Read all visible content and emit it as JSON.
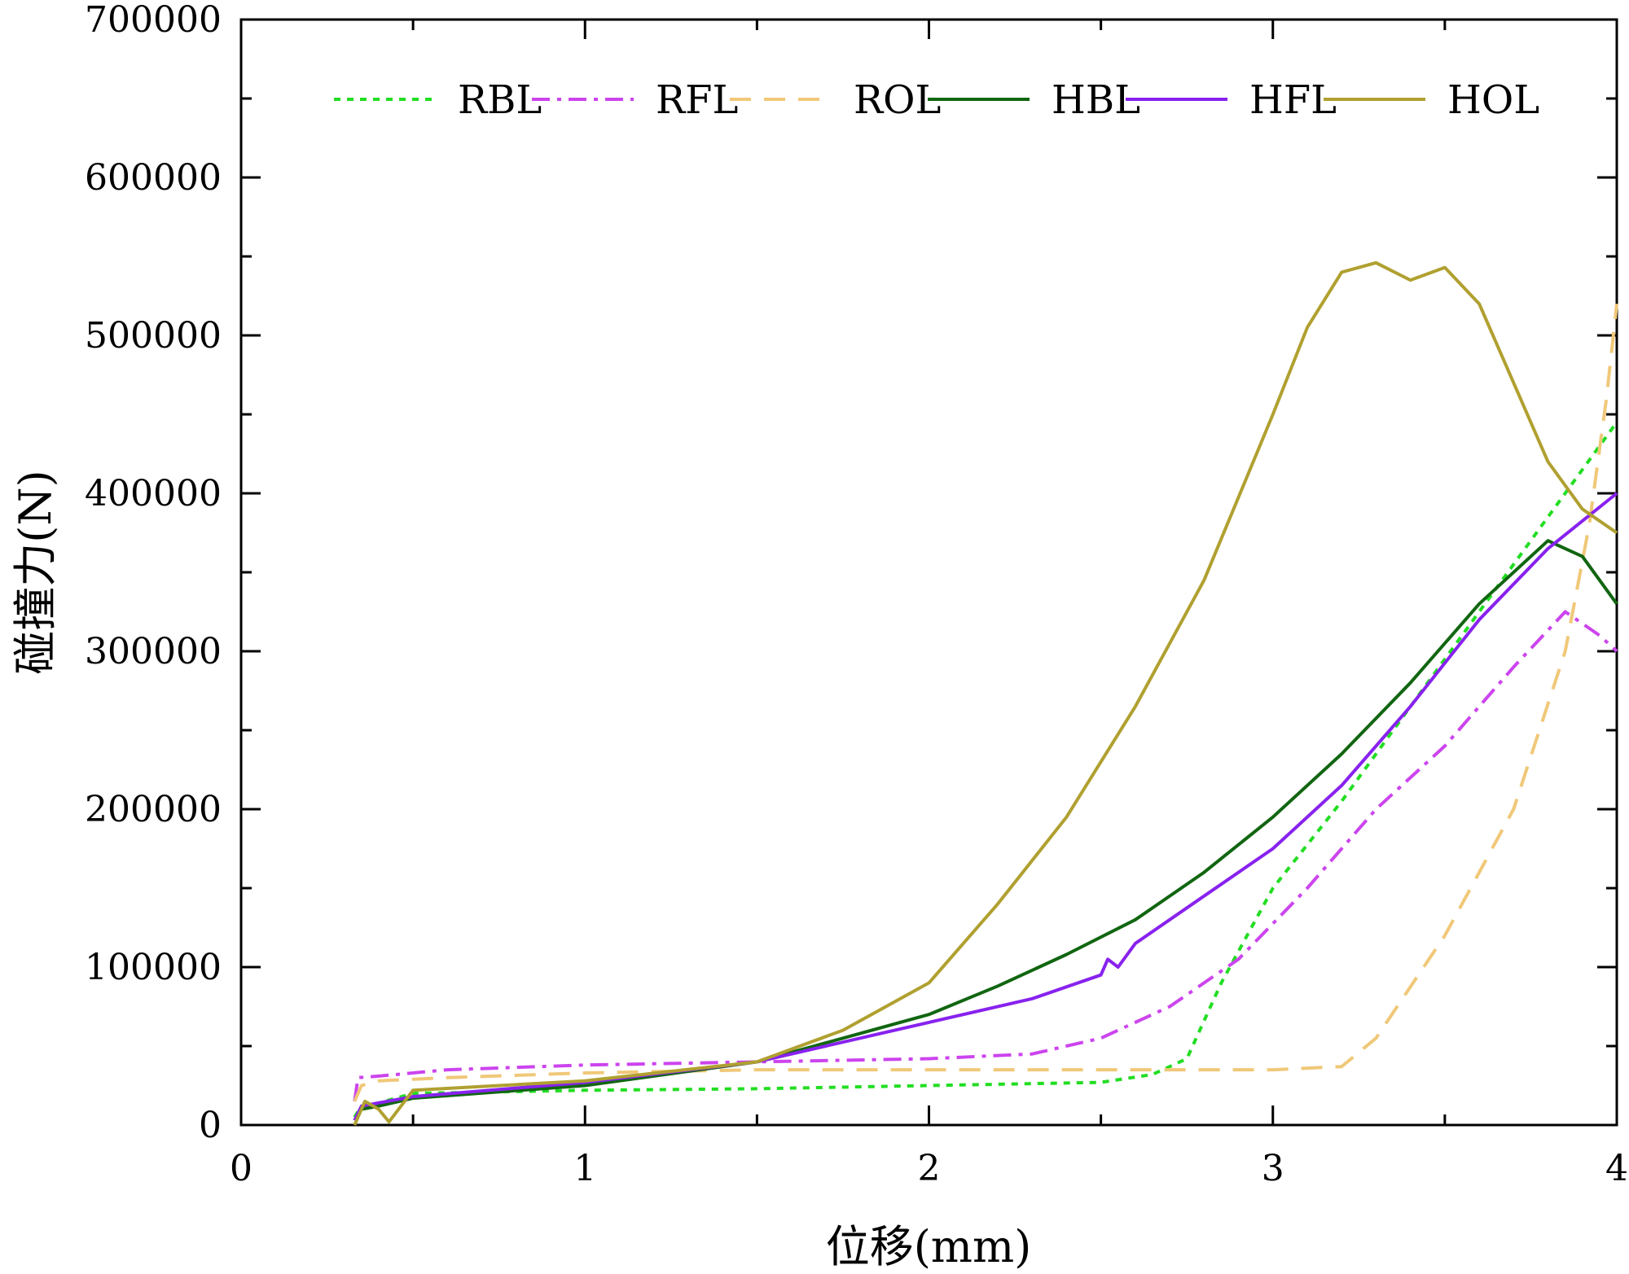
{
  "chart_data": {
    "type": "line",
    "title": "",
    "xlabel": "位移(mm)",
    "ylabel": "碰撞力(N)",
    "xlim": [
      0,
      4
    ],
    "ylim": [
      0,
      700000
    ],
    "xticks": [
      0,
      1,
      2,
      3,
      4
    ],
    "xtick_labels": [
      "0",
      "1",
      "2",
      "3",
      "4"
    ],
    "yticks": [
      0,
      100000,
      200000,
      300000,
      400000,
      500000,
      600000,
      700000
    ],
    "ytick_labels": [
      "0",
      "100000",
      "200000",
      "300000",
      "400000",
      "500000",
      "600000",
      "700000"
    ],
    "grid": false,
    "legend_position": "top",
    "series": [
      {
        "name": "RBL",
        "color": "#22dd22",
        "dash": "dotted",
        "x": [
          0.33,
          0.35,
          0.4,
          0.5,
          1.0,
          1.5,
          2.0,
          2.5,
          2.65,
          2.75,
          2.85,
          3.0,
          3.2,
          3.4,
          3.6,
          3.8,
          4.0
        ],
        "y": [
          5000,
          12000,
          14000,
          20000,
          22000,
          23000,
          25000,
          27000,
          32000,
          42000,
          90000,
          150000,
          205000,
          265000,
          325000,
          385000,
          445000
        ]
      },
      {
        "name": "RFL",
        "color": "#cc44ee",
        "dash": "dashdot",
        "x": [
          0.33,
          0.34,
          0.4,
          0.6,
          1.0,
          1.5,
          2.0,
          2.3,
          2.5,
          2.7,
          2.9,
          3.1,
          3.3,
          3.5,
          3.7,
          3.85,
          3.95,
          4.0
        ],
        "y": [
          15000,
          30000,
          31000,
          35000,
          38000,
          40000,
          42000,
          45000,
          55000,
          75000,
          105000,
          150000,
          200000,
          240000,
          290000,
          325000,
          310000,
          300000
        ]
      },
      {
        "name": "ROL",
        "color": "#f0c878",
        "dash": "dashed",
        "x": [
          0.33,
          0.35,
          0.4,
          0.6,
          1.0,
          1.5,
          2.0,
          2.5,
          3.0,
          3.2,
          3.3,
          3.5,
          3.7,
          3.85,
          3.92,
          3.97,
          4.0
        ],
        "y": [
          15000,
          25000,
          28000,
          30000,
          33000,
          35000,
          35000,
          35000,
          35000,
          37000,
          55000,
          120000,
          200000,
          300000,
          380000,
          460000,
          520000
        ]
      },
      {
        "name": "HBL",
        "color": "#116611",
        "dash": "solid",
        "x": [
          0.33,
          0.35,
          0.4,
          0.5,
          1.0,
          1.5,
          2.0,
          2.2,
          2.4,
          2.6,
          2.8,
          3.0,
          3.2,
          3.4,
          3.6,
          3.8,
          3.9,
          4.0
        ],
        "y": [
          3000,
          10000,
          12000,
          17000,
          25000,
          40000,
          70000,
          88000,
          108000,
          130000,
          160000,
          195000,
          235000,
          280000,
          330000,
          370000,
          360000,
          330000
        ]
      },
      {
        "name": "HFL",
        "color": "#8822ee",
        "dash": "solid",
        "x": [
          0.33,
          0.35,
          0.4,
          0.5,
          1.0,
          1.5,
          2.0,
          2.3,
          2.5,
          2.52,
          2.55,
          2.6,
          2.8,
          3.0,
          3.2,
          3.4,
          3.6,
          3.8,
          4.0
        ],
        "y": [
          3000,
          12000,
          14000,
          18000,
          27000,
          40000,
          65000,
          80000,
          95000,
          105000,
          100000,
          115000,
          145000,
          175000,
          215000,
          265000,
          320000,
          365000,
          400000
        ]
      },
      {
        "name": "HOL",
        "color": "#b0a030",
        "dash": "solid",
        "x": [
          0.33,
          0.36,
          0.4,
          0.43,
          0.5,
          1.0,
          1.5,
          1.75,
          2.0,
          2.2,
          2.4,
          2.6,
          2.8,
          3.0,
          3.1,
          3.2,
          3.3,
          3.4,
          3.5,
          3.6,
          3.7,
          3.8,
          3.9,
          4.0
        ],
        "y": [
          0,
          15000,
          10000,
          2000,
          22000,
          28000,
          40000,
          60000,
          90000,
          140000,
          195000,
          265000,
          345000,
          450000,
          505000,
          540000,
          546000,
          535000,
          543000,
          520000,
          470000,
          420000,
          390000,
          375000
        ]
      }
    ]
  }
}
